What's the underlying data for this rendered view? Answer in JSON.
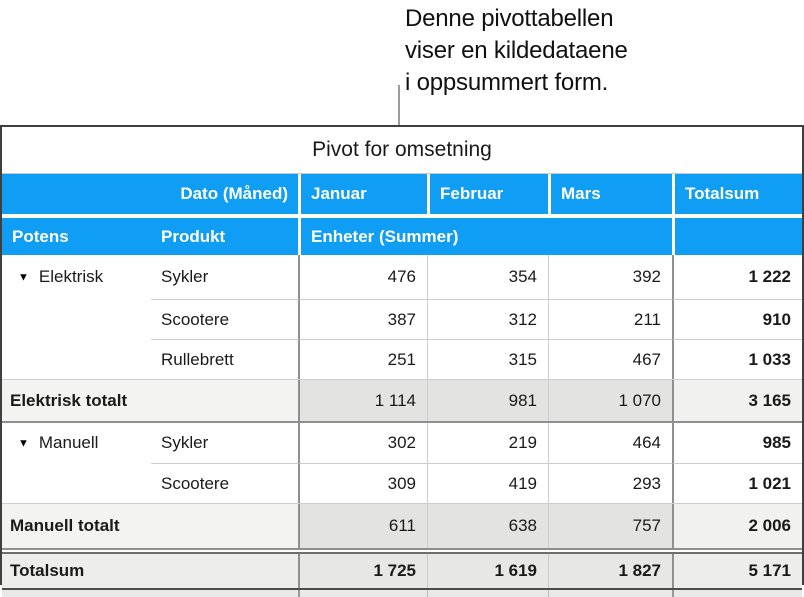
{
  "annotation": {
    "lines": [
      "Denne pivottabellen",
      "viser en kildedataene",
      "i oppsummert form."
    ]
  },
  "icons": {
    "disclosure": "▼"
  },
  "colors": {
    "header_blue": "#109EF4",
    "subtotal_label_bg": "#f3f3f1",
    "subtotal_value_bg": "#e3e3e1",
    "grand_row_bg": "#ededeb"
  },
  "table": {
    "title": "Pivot for omsetning",
    "h1": {
      "dato": "Dato (Måned)",
      "months": [
        "Januar",
        "Februar",
        "Mars"
      ],
      "total": "Totalsum"
    },
    "h2": {
      "potens": "Potens",
      "produkt": "Produkt",
      "enheter": "Enheter (Summer)"
    },
    "groups": [
      {
        "label": "Elektrisk",
        "rows": [
          {
            "product": "Sykler",
            "values": [
              "476",
              "354",
              "392"
            ],
            "total": "1 222"
          },
          {
            "product": "Scootere",
            "values": [
              "387",
              "312",
              "211"
            ],
            "total": "910"
          },
          {
            "product": "Rullebrett",
            "values": [
              "251",
              "315",
              "467"
            ],
            "total": "1 033"
          }
        ],
        "subtotal": {
          "label": "Elektrisk totalt",
          "values": [
            "1 114",
            "981",
            "1 070"
          ],
          "total": "3 165"
        }
      },
      {
        "label": "Manuell",
        "rows": [
          {
            "product": "Sykler",
            "values": [
              "302",
              "219",
              "464"
            ],
            "total": "985"
          },
          {
            "product": "Scootere",
            "values": [
              "309",
              "419",
              "293"
            ],
            "total": "1 021"
          }
        ],
        "subtotal": {
          "label": "Manuell totalt",
          "values": [
            "611",
            "638",
            "757"
          ],
          "total": "2 006"
        }
      }
    ],
    "grand": {
      "label": "Totalsum",
      "values": [
        "1 725",
        "1 619",
        "1 827"
      ],
      "total": "5 171"
    }
  }
}
